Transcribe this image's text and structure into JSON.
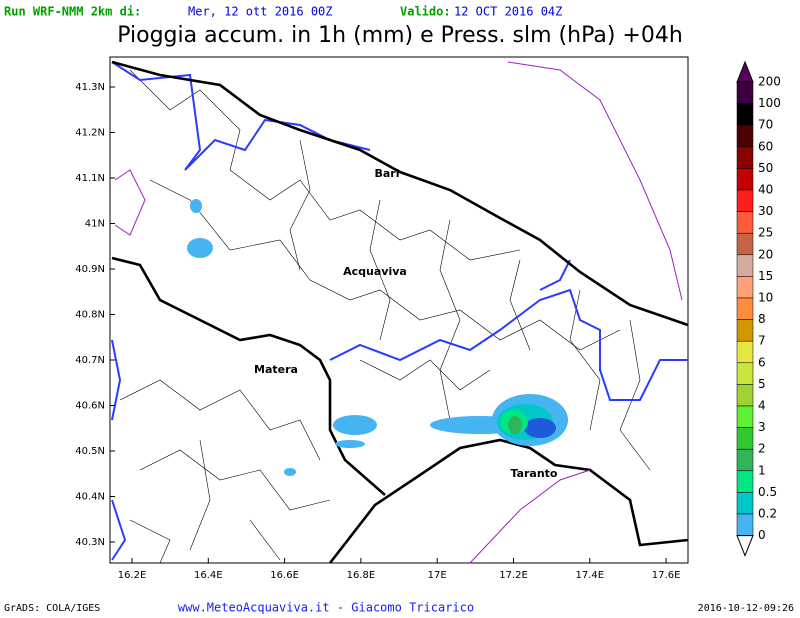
{
  "header": {
    "run_label": "Run WRF-NMM 2km di:",
    "run_date": "Mer, 12 ott 2016 00Z",
    "valid_label": "Valido:",
    "valid_date": "12 OCT 2016 04Z",
    "title": "Pioggia accum. in 1h (mm) e Press. slm (hPa) +04h"
  },
  "map": {
    "lon_labels": [
      "16.2E",
      "16.4E",
      "16.6E",
      "16.8E",
      "17E",
      "17.2E",
      "17.4E",
      "17.6E"
    ],
    "lat_labels": [
      "41.3N",
      "41.2N",
      "41.1N",
      "41N",
      "40.9N",
      "40.8N",
      "40.7N",
      "40.6N",
      "40.5N",
      "40.4N",
      "40.3N"
    ],
    "cities": [
      "Bari",
      "Acquaviva",
      "Matera",
      "Taranto"
    ]
  },
  "legend": {
    "labels": [
      "200",
      "100",
      "70",
      "60",
      "50",
      "40",
      "30",
      "25",
      "20",
      "15",
      "10",
      "8",
      "7",
      "6",
      "5",
      "4",
      "3",
      "2",
      "1",
      "0.5",
      "0.2",
      "0"
    ],
    "colors": [
      "#5a005a",
      "#3c0040",
      "#000000",
      "#500000",
      "#8b0000",
      "#c40000",
      "#ff1e1e",
      "#ff5a3c",
      "#c86446",
      "#d7aaa0",
      "#ffa078",
      "#ff8c3c",
      "#d29600",
      "#e6e640",
      "#c8e63c",
      "#a0d232",
      "#5ff032",
      "#32c832",
      "#32b45a",
      "#00e682",
      "#00c8c8",
      "#46b4f0",
      "#ffffff"
    ]
  },
  "footer": {
    "left": "GrADS: COLA/IGES",
    "center": "www.MeteoAcquaviva.it - Giacomo Tricarico",
    "right": "2016-10-12-09:26"
  }
}
